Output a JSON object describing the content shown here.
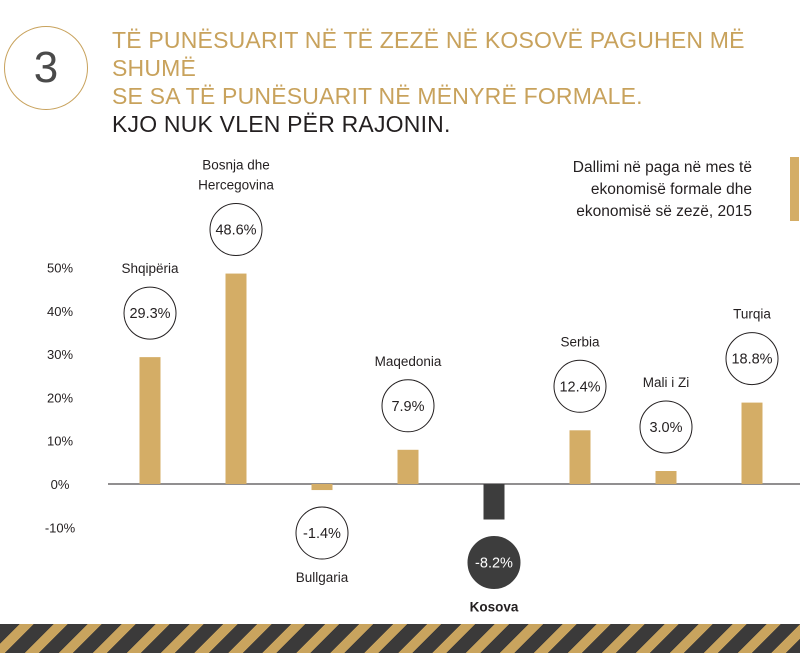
{
  "header": {
    "number": "3",
    "line1": "TË PUNËSUARIT NË TË ZEZË NË KOSOVË PAGUHEN MË SHUMË",
    "line2": "SE SA TË PUNËSUARIT NË MËNYRË FORMALE.",
    "line3": "KJO NUK VLEN PËR RAJONIN."
  },
  "legend": {
    "line1": "Dallimi në paga në mes të",
    "line2": "ekonomisë formale dhe",
    "line3": "ekonomisë së zezë, 2015"
  },
  "colors": {
    "bar": "#d4ad66",
    "highlight": "#3d3d3d",
    "accent": "#c8a25c",
    "text": "#231f20"
  },
  "chart_data": {
    "type": "bar",
    "yunit": "%",
    "ylim": [
      -10,
      50
    ],
    "yticks": [
      50,
      40,
      30,
      20,
      10,
      0,
      -10
    ],
    "ytick_labels": [
      "50%",
      "40%",
      "30%",
      "20%",
      "10%",
      "0%",
      "-10%"
    ],
    "categories": [
      "Shqipëria",
      "Bosnja dhe Hercegovina",
      "Bullgaria",
      "Maqedonia",
      "Kosova",
      "Serbia",
      "Mali i Zi",
      "Turqia"
    ],
    "category_lines": [
      [
        "Shqipëria"
      ],
      [
        "Bosnja dhe",
        "Hercegovina"
      ],
      [
        "Bullgaria"
      ],
      [
        "Maqedonia"
      ],
      [
        "Kosova"
      ],
      [
        "Serbia"
      ],
      [
        "Mali i Zi"
      ],
      [
        "Turqia"
      ]
    ],
    "values": [
      29.3,
      48.6,
      -1.4,
      7.9,
      -8.2,
      12.4,
      3.0,
      18.8
    ],
    "value_labels": [
      "29.3%",
      "48.6%",
      "-1.4%",
      "7.9%",
      "-8.2%",
      "12.4%",
      "3.0%",
      "18.8%"
    ],
    "highlight": "Kosova"
  }
}
